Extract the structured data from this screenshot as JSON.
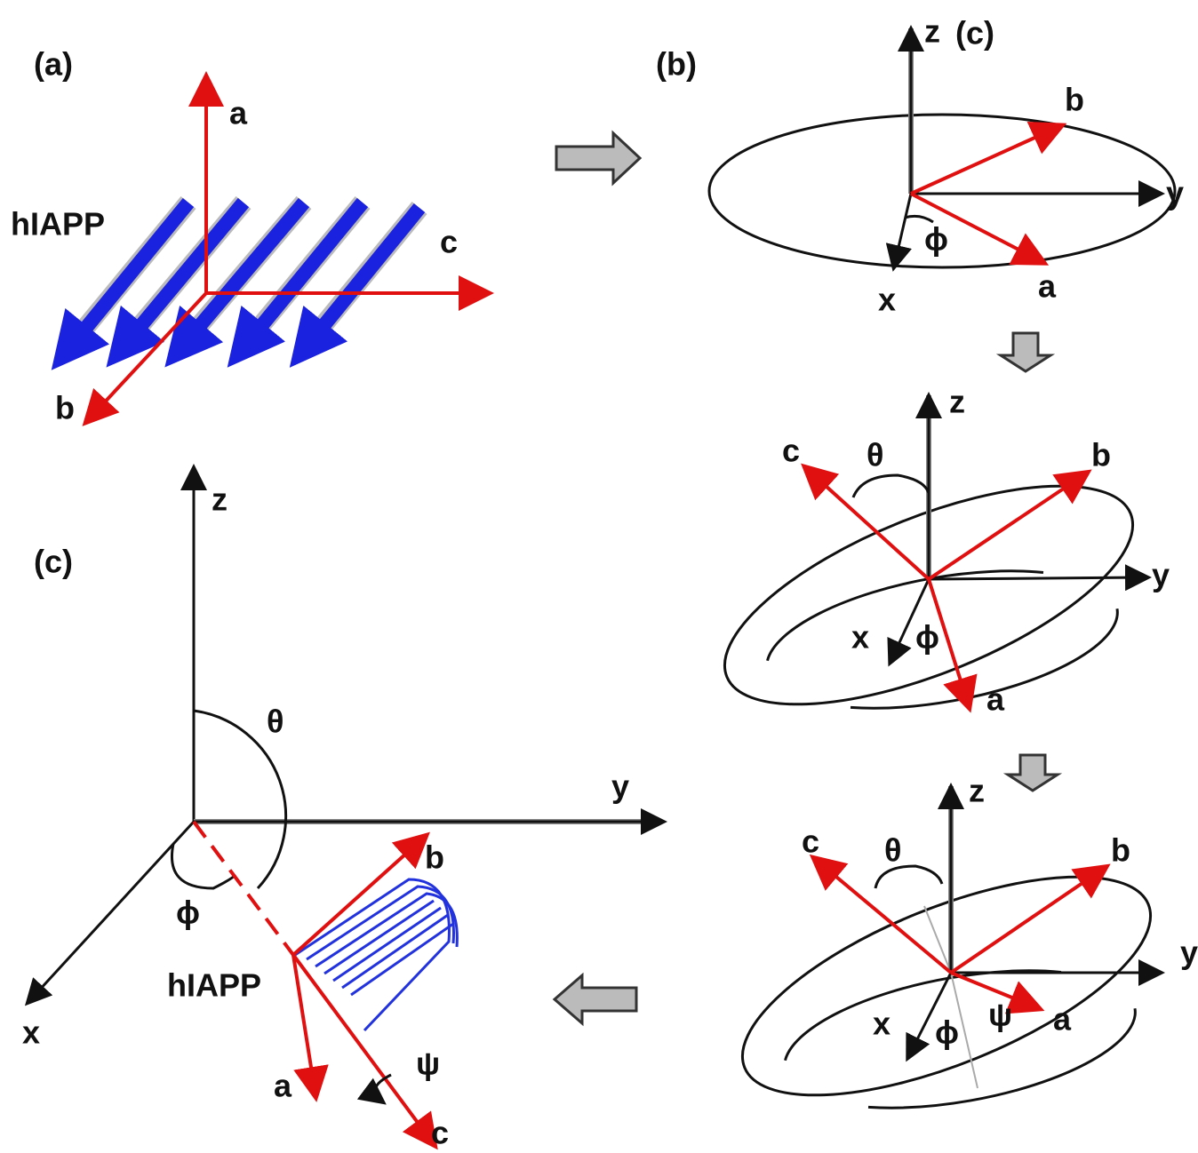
{
  "panel_a": {
    "label": "(a)",
    "axis_a": "a",
    "axis_b": "b",
    "axis_c": "c",
    "molecule": "hIAPP"
  },
  "panel_b": {
    "label": "(b)",
    "step1": {
      "z": "z",
      "z_note": "(c)",
      "x": "x",
      "y": "y",
      "a": "a",
      "b": "b",
      "phi": "ϕ"
    },
    "step2": {
      "z": "z",
      "x": "x",
      "y": "y",
      "a": "a",
      "b": "b",
      "c": "c",
      "phi": "ϕ",
      "theta": "θ"
    },
    "step3": {
      "z": "z",
      "x": "x",
      "y": "y",
      "a": "a",
      "b": "b",
      "c": "c",
      "phi": "ϕ",
      "theta": "θ",
      "psi": "ψ"
    }
  },
  "panel_c": {
    "label": "(c)",
    "z": "z",
    "x": "x",
    "y": "y",
    "a": "a",
    "b": "b",
    "c": "c",
    "theta": "θ",
    "phi": "ϕ",
    "psi": "ψ",
    "molecule": "hIAPP"
  }
}
